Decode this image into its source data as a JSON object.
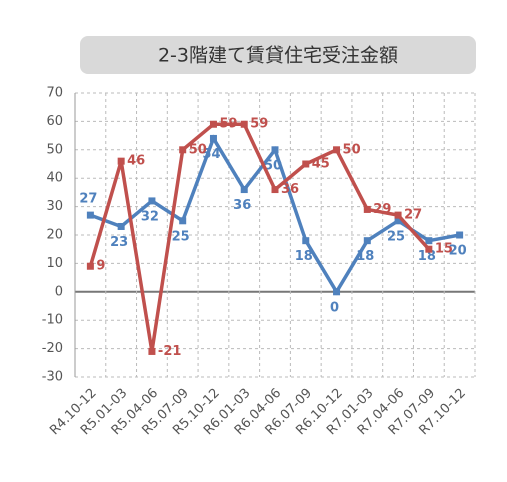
{
  "chart_data": {
    "type": "line",
    "title": "2-3階建て賃貸住宅受注金額",
    "categories": [
      "R4.10-12",
      "R5.01-03",
      "R5.04-06",
      "R5.07-09",
      "R5.10-12",
      "R6.01-03",
      "R6.04-06",
      "R6.07-09",
      "R6.10-12",
      "R7.01-03",
      "R7.04-06",
      "R7.07-09",
      "R7.10-12"
    ],
    "series": [
      {
        "color": "#4f81bd",
        "values": [
          27,
          23,
          32,
          25,
          54,
          36,
          50,
          18,
          0,
          18,
          25,
          18,
          20
        ]
      },
      {
        "color": "#c0504d",
        "values": [
          9,
          46,
          -21,
          50,
          59,
          59,
          36,
          45,
          50,
          29,
          27,
          15,
          null
        ]
      }
    ],
    "ylim": [
      -30,
      70
    ],
    "yticks": [
      -30,
      -20,
      -10,
      0,
      10,
      20,
      30,
      40,
      50,
      60,
      70
    ],
    "grid": true
  }
}
